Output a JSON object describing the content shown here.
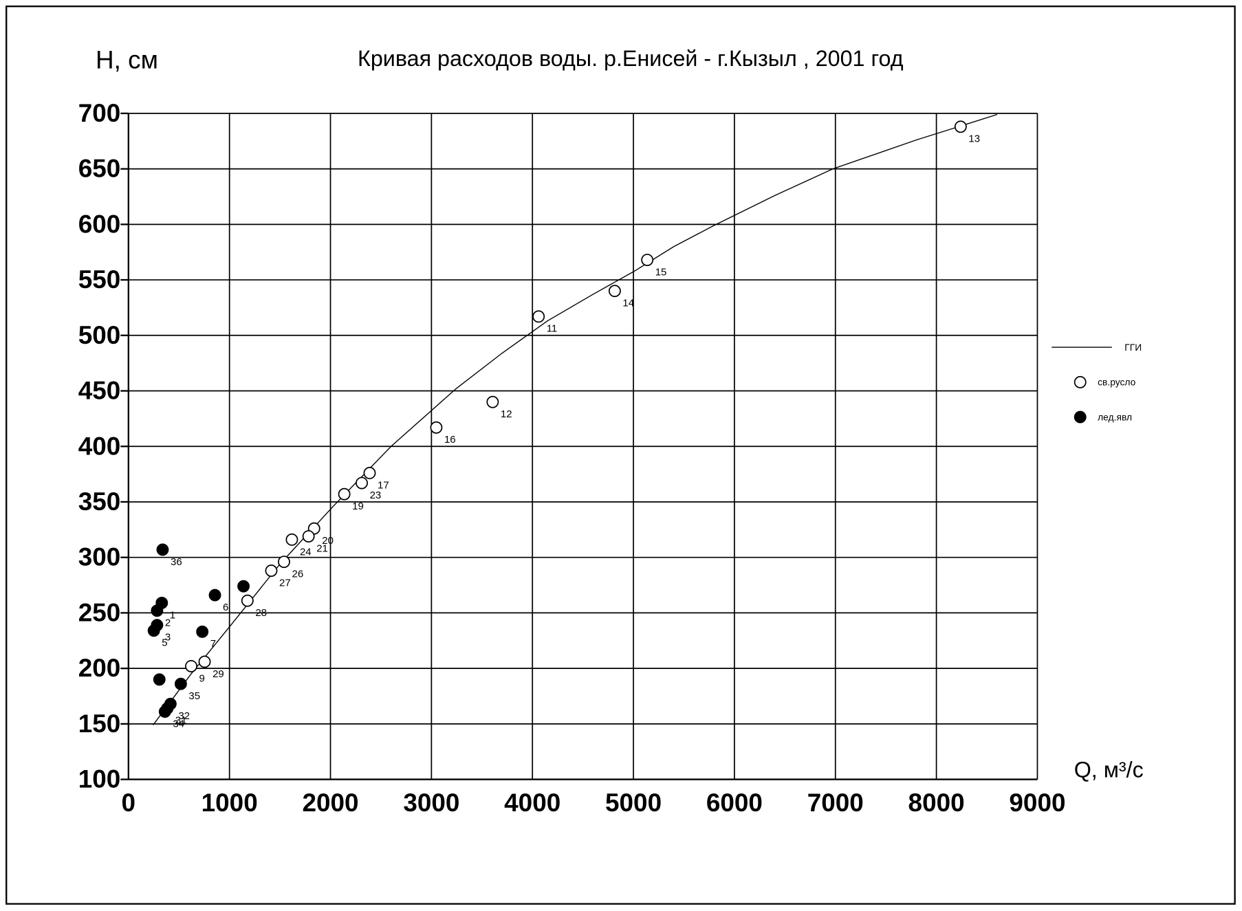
{
  "chart_data": {
    "type": "scatter",
    "title": "Кривая расходов воды. р.Енисей  - г.Кызыл , 2001 год",
    "y_label": "H, см",
    "x_label": "Q, м³/с",
    "xlim": [
      0,
      9000
    ],
    "xticks": [
      0,
      1000,
      2000,
      3000,
      4000,
      5000,
      6000,
      7000,
      8000,
      9000
    ],
    "ylim": [
      100,
      700
    ],
    "yticks": [
      100,
      150,
      200,
      250,
      300,
      350,
      400,
      450,
      500,
      550,
      600,
      650,
      700
    ],
    "grid": true,
    "legend": "right",
    "series": [
      {
        "name": "ГГИ",
        "style": "line",
        "color": "#000000",
        "x": [
          244,
          620,
          1005,
          1500,
          2027,
          2600,
          3244,
          3700,
          4148,
          4600,
          5012,
          5400,
          5797,
          6400,
          6975,
          7800,
          8602
        ],
        "values": [
          149,
          195,
          238,
          294,
          346,
          400,
          452,
          484,
          513,
          537,
          558,
          580,
          599,
          626,
          650,
          676,
          699
        ]
      },
      {
        "name": "св.русло",
        "style": "open",
        "color": "#000000",
        "x": [
          8240,
          5137,
          4815,
          4061,
          3606,
          3048,
          2388,
          2310,
          2137,
          1838,
          1783,
          1618,
          1540,
          1414,
          1178,
          754,
          621
        ],
        "values": [
          688,
          568,
          540,
          517,
          440,
          417,
          376,
          367,
          357,
          326,
          319,
          316,
          296,
          288,
          261,
          206,
          202
        ],
        "labels": [
          "13",
          "15",
          "14",
          "11",
          "12",
          "16",
          "17",
          "23",
          "19",
          "20",
          "21",
          "24",
          "26",
          "27",
          "28",
          "29",
          "9"
        ]
      },
      {
        "name": "лед.явл",
        "style": "filled",
        "color": "#000000",
        "x": [
          338,
          330,
          283,
          283,
          251,
          856,
          731,
          1139,
          306,
          518,
          416,
          385,
          361
        ],
        "values": [
          307,
          259,
          252,
          239,
          234,
          266,
          233,
          274,
          190,
          186,
          168,
          164,
          161
        ],
        "labels": [
          "36",
          "1",
          "2",
          "3",
          "5",
          "6",
          "7",
          null,
          null,
          "35",
          "32",
          "31",
          "34"
        ]
      }
    ]
  }
}
